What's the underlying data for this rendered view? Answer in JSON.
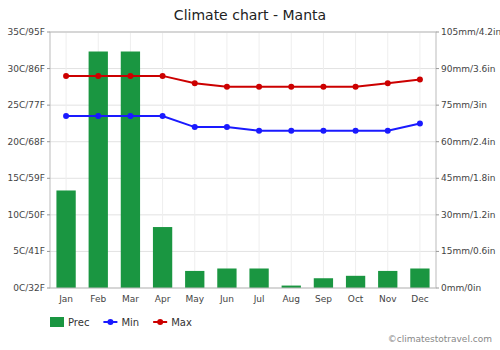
{
  "chart_data": {
    "type": "combo",
    "title": "Climate chart - Manta",
    "categories": [
      "Jan",
      "Feb",
      "Mar",
      "Apr",
      "May",
      "Jun",
      "Jul",
      "Aug",
      "Sep",
      "Oct",
      "Nov",
      "Dec"
    ],
    "series": [
      {
        "name": "Prec",
        "type": "bar",
        "axis": "y2",
        "color": "#1a9641",
        "values": [
          40,
          97,
          97,
          25,
          7,
          8,
          8,
          1,
          4,
          5,
          7,
          8
        ]
      },
      {
        "name": "Min",
        "type": "line",
        "color": "#1a1aff",
        "marker": "circle",
        "values": [
          23.5,
          23.5,
          23.5,
          23.5,
          22.0,
          22.0,
          21.5,
          21.5,
          21.5,
          21.5,
          21.5,
          22.5
        ]
      },
      {
        "name": "Max",
        "type": "line",
        "color": "#cc0000",
        "marker": "circle",
        "values": [
          29.0,
          29.0,
          29.0,
          29.0,
          28.0,
          27.5,
          27.5,
          27.5,
          27.5,
          27.5,
          28.0,
          28.5
        ]
      }
    ],
    "ylim": [
      0,
      35
    ],
    "yticks": [
      {
        "value": 0,
        "label": "0C/32F"
      },
      {
        "value": 5,
        "label": "5C/41F"
      },
      {
        "value": 10,
        "label": "10C/50F"
      },
      {
        "value": 15,
        "label": "15C/59F"
      },
      {
        "value": 20,
        "label": "20C/68F"
      },
      {
        "value": 25,
        "label": "25C/77F"
      },
      {
        "value": 30,
        "label": "30C/86F"
      },
      {
        "value": 35,
        "label": "35C/95F"
      }
    ],
    "y2lim": [
      0,
      105
    ],
    "y2ticks": [
      {
        "value": 0,
        "label": "0mm/0in"
      },
      {
        "value": 15,
        "label": "15mm/0.6in"
      },
      {
        "value": 30,
        "label": "30mm/1.2in"
      },
      {
        "value": 45,
        "label": "45mm/1.8in"
      },
      {
        "value": 60,
        "label": "60mm/2.4in"
      },
      {
        "value": 75,
        "label": "75mm/3in"
      },
      {
        "value": 90,
        "label": "90mm/3.6in"
      },
      {
        "value": 105,
        "label": "105mm/4.2in"
      }
    ],
    "grid": true,
    "legend": "lower left",
    "annotations": [
      "©climatestotravel.com"
    ]
  }
}
